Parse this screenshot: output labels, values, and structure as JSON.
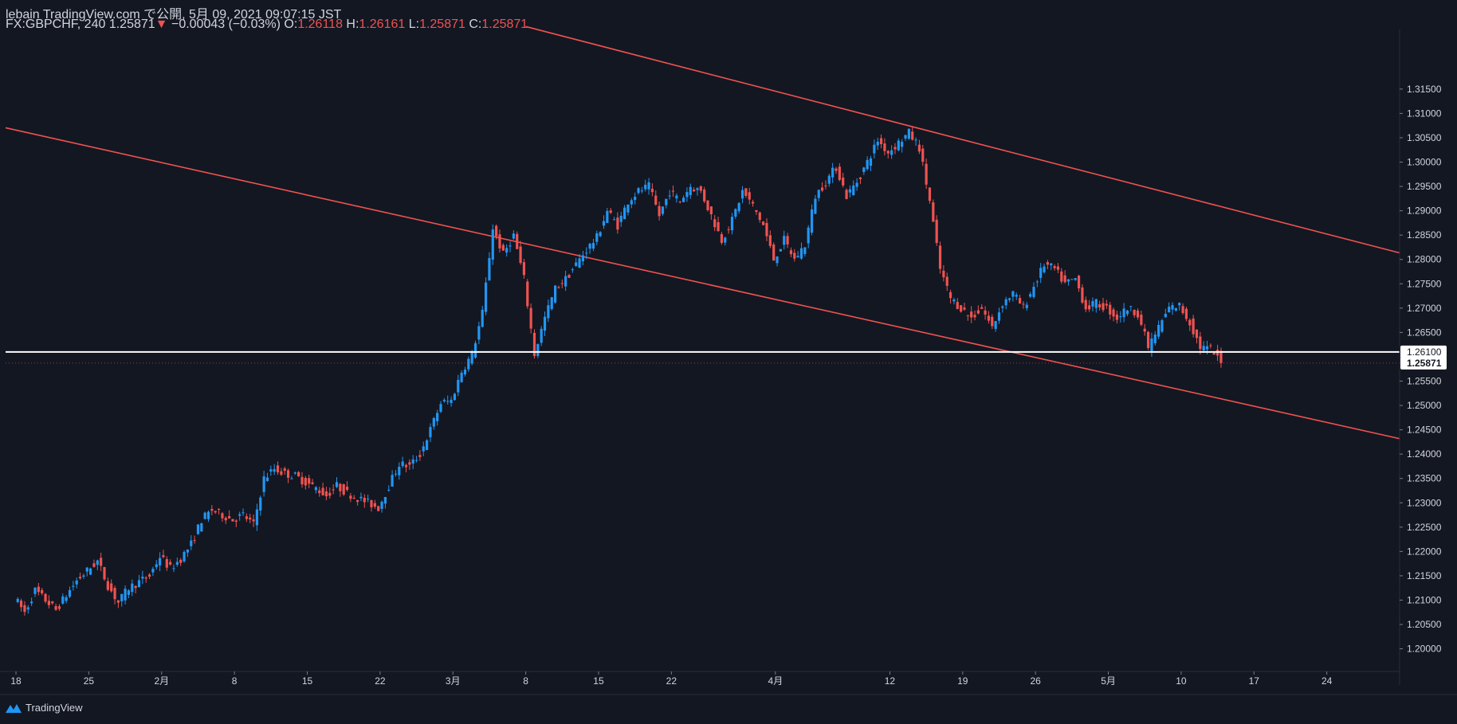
{
  "header": {
    "line1": "lebain TradingView.com で公開, 5月 09, 2021 09:07:15 JST",
    "symbol": "FX:GBPCHF, 240",
    "last": "1.25871",
    "change": "−0.00043 (−0.03%)",
    "o_label": "O:",
    "o": "1.26118",
    "h_label": "H:",
    "h": "1.26161",
    "l_label": "L:",
    "l": "1.25871",
    "c_label": "C:",
    "c": "1.25871"
  },
  "branding": {
    "label": "TradingView",
    "icon": "tradingview-logo-icon"
  },
  "colors": {
    "background": "#131722",
    "up": "#2196f3",
    "down": "#ef5350",
    "trendline": "#ef5350",
    "hline": "#ffffff"
  },
  "chart_data": {
    "type": "candlestick",
    "symbol": "FX:GBPCHF",
    "interval": "240",
    "y_ticks": [
      "1.31500",
      "1.31000",
      "1.30500",
      "1.30000",
      "1.29500",
      "1.29000",
      "1.28500",
      "1.28000",
      "1.27500",
      "1.27000",
      "1.26500",
      "1.25500",
      "1.25000",
      "1.24500",
      "1.24000",
      "1.23500",
      "1.23000",
      "1.22500",
      "1.22000",
      "1.21500",
      "1.21000",
      "1.20500",
      "1.20000"
    ],
    "ylim": [
      1.19535,
      1.32725
    ],
    "x_ticks": [
      "18",
      "25",
      "2月",
      "8",
      "15",
      "22",
      "3月",
      "8",
      "15",
      "22",
      "4月",
      "12",
      "19",
      "26",
      "5月",
      "10",
      "17",
      "24"
    ],
    "x_tick_dates": [
      "2021-01-18",
      "2021-01-25",
      "2021-02-01",
      "2021-02-08",
      "2021-02-15",
      "2021-02-22",
      "2021-03-01",
      "2021-03-08",
      "2021-03-15",
      "2021-03-22",
      "2021-04-01",
      "2021-04-12",
      "2021-04-19",
      "2021-04-26",
      "2021-05-03",
      "2021-05-10",
      "2021-05-17",
      "2021-05-24"
    ],
    "xlim": [
      "2021-01-17",
      "2021-05-31"
    ],
    "horizontal_line": {
      "value": 1.261,
      "label": "1.26100"
    },
    "last_price": {
      "value": 1.25871,
      "label": "1.25871"
    },
    "trendlines": [
      {
        "start": [
          "2021-01-17",
          1.30705
        ],
        "end": [
          "2021-05-31",
          1.24318
        ]
      },
      {
        "start": [
          "2021-03-08",
          1.32785
        ],
        "end": [
          "2021-05-31",
          1.28135
        ]
      }
    ],
    "path": [
      [
        "2021-01-18",
        1.2105
      ],
      [
        "2021-01-19",
        1.2075
      ],
      [
        "2021-01-20",
        1.212
      ],
      [
        "2021-01-22",
        1.208
      ],
      [
        "2021-01-24",
        1.214
      ],
      [
        "2021-01-26",
        1.218
      ],
      [
        "2021-01-27",
        1.213
      ],
      [
        "2021-01-28",
        1.2095
      ],
      [
        "2021-01-29",
        1.2125
      ],
      [
        "2021-01-31",
        1.215
      ],
      [
        "2021-02-01",
        1.219
      ],
      [
        "2021-02-02",
        1.2165
      ],
      [
        "2021-02-03",
        1.2185
      ],
      [
        "2021-02-04",
        1.2215
      ],
      [
        "2021-02-05",
        1.2265
      ],
      [
        "2021-02-06",
        1.2285
      ],
      [
        "2021-02-08",
        1.2265
      ],
      [
        "2021-02-09",
        1.2275
      ],
      [
        "2021-02-10",
        1.2255
      ],
      [
        "2021-02-11",
        1.235
      ],
      [
        "2021-02-12",
        1.237
      ],
      [
        "2021-02-13",
        1.236
      ],
      [
        "2021-02-14",
        1.2355
      ],
      [
        "2021-02-16",
        1.233
      ],
      [
        "2021-02-17",
        1.2315
      ],
      [
        "2021-02-18",
        1.2335
      ],
      [
        "2021-02-19",
        1.232
      ],
      [
        "2021-02-21",
        1.23
      ],
      [
        "2021-02-22",
        1.229
      ],
      [
        "2021-02-23",
        1.2335
      ],
      [
        "2021-02-24",
        1.238
      ],
      [
        "2021-02-25",
        1.2375
      ],
      [
        "2021-02-26",
        1.24
      ],
      [
        "2021-02-27",
        1.245
      ],
      [
        "2021-02-28",
        1.2505
      ],
      [
        "2021-03-01",
        1.251
      ],
      [
        "2021-03-02",
        1.257
      ],
      [
        "2021-03-03",
        1.2605
      ],
      [
        "2021-03-04",
        1.269
      ],
      [
        "2021-03-05",
        1.2865
      ],
      [
        "2021-03-06",
        1.281
      ],
      [
        "2021-03-07",
        1.285
      ],
      [
        "2021-03-08",
        1.276
      ],
      [
        "2021-03-09",
        1.2605
      ],
      [
        "2021-03-10",
        1.268
      ],
      [
        "2021-03-11",
        1.274
      ],
      [
        "2021-03-12",
        1.276
      ],
      [
        "2021-03-13",
        1.279
      ],
      [
        "2021-03-14",
        1.282
      ],
      [
        "2021-03-15",
        1.2845
      ],
      [
        "2021-03-16",
        1.29
      ],
      [
        "2021-03-17",
        1.287
      ],
      [
        "2021-03-18",
        1.292
      ],
      [
        "2021-03-19",
        1.294
      ],
      [
        "2021-03-20",
        1.295
      ],
      [
        "2021-03-21",
        1.289
      ],
      [
        "2021-03-22",
        1.294
      ],
      [
        "2021-03-23",
        1.292
      ],
      [
        "2021-03-24",
        1.295
      ],
      [
        "2021-03-25",
        1.294
      ],
      [
        "2021-03-26",
        1.289
      ],
      [
        "2021-03-27",
        1.284
      ],
      [
        "2021-03-28",
        1.288
      ],
      [
        "2021-03-29",
        1.294
      ],
      [
        "2021-03-30",
        1.291
      ],
      [
        "2021-03-31",
        1.287
      ],
      [
        "2021-04-01",
        1.28
      ],
      [
        "2021-04-02",
        1.284
      ],
      [
        "2021-04-03",
        1.28
      ],
      [
        "2021-04-04",
        1.283
      ],
      [
        "2021-04-05",
        1.293
      ],
      [
        "2021-04-06",
        1.296
      ],
      [
        "2021-04-07",
        1.299
      ],
      [
        "2021-04-08",
        1.293
      ],
      [
        "2021-04-09",
        1.296
      ],
      [
        "2021-04-10",
        1.3
      ],
      [
        "2021-04-11",
        1.3045
      ],
      [
        "2021-04-12",
        1.302
      ],
      [
        "2021-04-13",
        1.304
      ],
      [
        "2021-04-14",
        1.306
      ],
      [
        "2021-04-15",
        1.303
      ],
      [
        "2021-04-16",
        1.292
      ],
      [
        "2021-04-17",
        1.278
      ],
      [
        "2021-04-18",
        1.272
      ],
      [
        "2021-04-19",
        1.27
      ],
      [
        "2021-04-20",
        1.268
      ],
      [
        "2021-04-21",
        1.27
      ],
      [
        "2021-04-22",
        1.266
      ],
      [
        "2021-04-23",
        1.271
      ],
      [
        "2021-04-24",
        1.273
      ],
      [
        "2021-04-25",
        1.27
      ],
      [
        "2021-04-26",
        1.2745
      ],
      [
        "2021-04-27",
        1.279
      ],
      [
        "2021-04-28",
        1.278
      ],
      [
        "2021-04-29",
        1.275
      ],
      [
        "2021-04-30",
        1.276
      ],
      [
        "2021-05-01",
        1.27
      ],
      [
        "2021-05-02",
        1.271
      ],
      [
        "2021-05-03",
        1.27
      ],
      [
        "2021-05-04",
        1.268
      ],
      [
        "2021-05-05",
        1.27
      ],
      [
        "2021-05-06",
        1.269
      ],
      [
        "2021-05-07",
        1.262
      ],
      [
        "2021-05-08",
        1.266
      ],
      [
        "2021-05-09",
        1.27
      ],
      [
        "2021-05-10",
        1.2705
      ],
      [
        "2021-05-11",
        1.267
      ],
      [
        "2021-05-12",
        1.262
      ],
      [
        "2021-05-13",
        1.2615
      ],
      [
        "2021-05-14",
        1.2587
      ]
    ]
  }
}
